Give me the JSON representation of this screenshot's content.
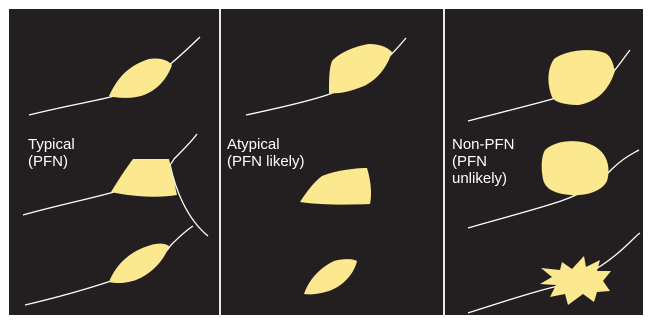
{
  "panels": [
    {
      "label": "Typical\n(PFN)"
    },
    {
      "label": "Atypical\n(PFN likely)"
    },
    {
      "label": "Non-PFN\n(PFN\nunlikely)"
    }
  ],
  "colors": {
    "background": "#231f20",
    "nodule": "#fce98f",
    "fissure": "#ffffff",
    "divider": "#e8e8e8"
  }
}
